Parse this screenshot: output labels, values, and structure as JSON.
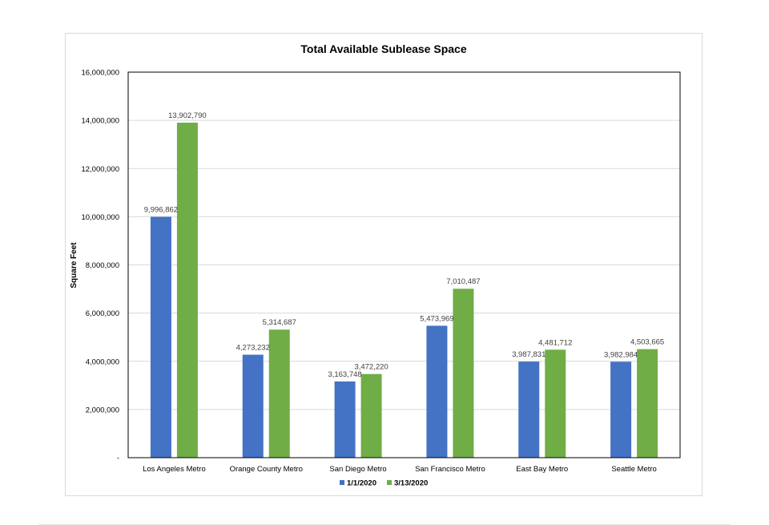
{
  "chart_data": {
    "type": "bar",
    "title": "Total Available Sublease Space",
    "ylabel": "Square Feet",
    "xlabel": "",
    "ylim": [
      0,
      16000000
    ],
    "yticks": [
      0,
      2000000,
      4000000,
      6000000,
      8000000,
      10000000,
      12000000,
      14000000,
      16000000
    ],
    "ytick_labels": [
      "-",
      "2,000,000",
      "4,000,000",
      "6,000,000",
      "8,000,000",
      "10,000,000",
      "12,000,000",
      "14,000,000",
      "16,000,000"
    ],
    "grid": true,
    "legend_position": "bottom",
    "categories": [
      "Los Angeles Metro",
      "Orange County Metro",
      "San Diego Metro",
      "San Francisco Metro",
      "East Bay Metro",
      "Seattle Metro"
    ],
    "series": [
      {
        "name": "1/1/2020",
        "color": "#4472c4",
        "values": [
          9996862,
          4273232,
          3163748,
          5473969,
          3987831,
          3982984
        ],
        "labels": [
          "9,996,862",
          "4,273,232",
          "3,163,748",
          "5,473,969",
          "3,987,831",
          "3,982,984"
        ]
      },
      {
        "name": "3/13/2020",
        "color": "#70ad47",
        "values": [
          13902790,
          5314687,
          3472220,
          7010487,
          4481712,
          4503665
        ],
        "labels": [
          "13,902,790",
          "5,314,687",
          "3,472,220",
          "7,010,487",
          "4,481,712",
          "4,503,665"
        ]
      }
    ]
  }
}
